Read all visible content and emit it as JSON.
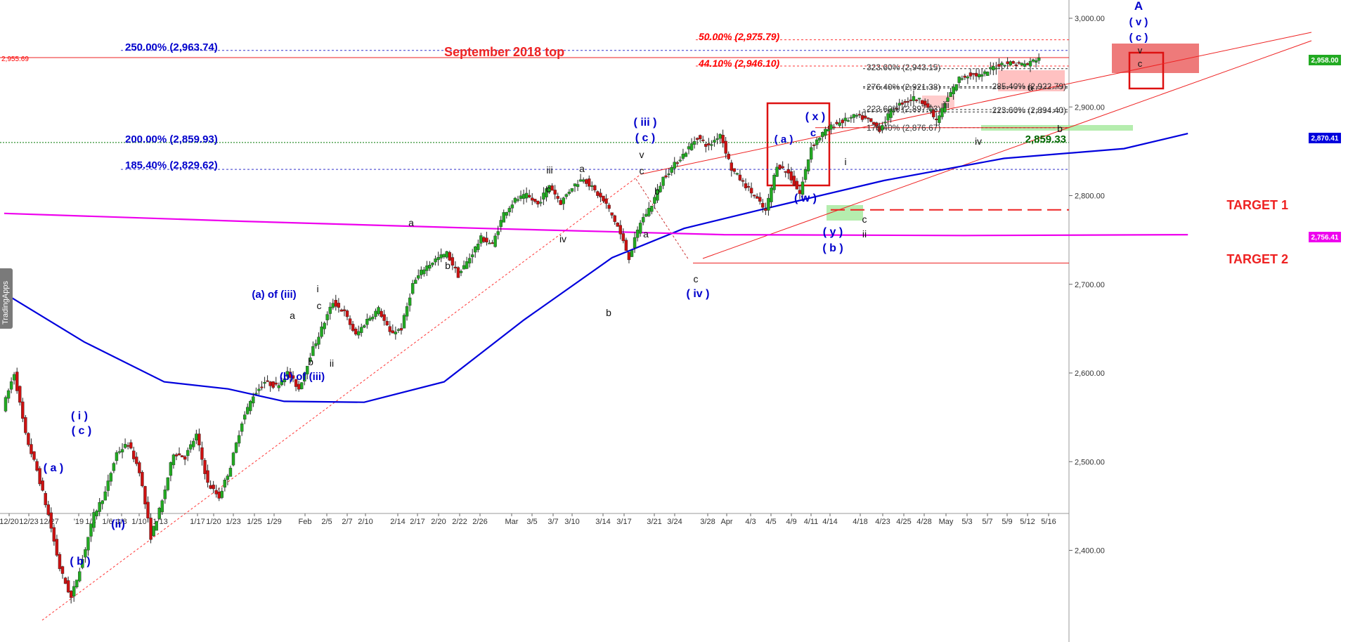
{
  "watermark": "TradingApps",
  "chart_data": {
    "type": "candlestick",
    "title": "",
    "ylim": [
      2320,
      3020
    ],
    "y_ticks": [
      "3,000.00",
      "2,900.00",
      "2,800.00",
      "2,700.00",
      "2,600.00",
      "2,500.00",
      "2,400.00"
    ],
    "x_ticks": [
      "12/20",
      "12/23",
      "12/27",
      "'19",
      "1/3",
      "1/6",
      "1/8",
      "1/10",
      "1/13",
      "1/17",
      "1/20",
      "1/23",
      "1/25",
      "1/29",
      "Feb",
      "2/5",
      "2/7",
      "2/10",
      "2/14",
      "2/17",
      "2/20",
      "2/22",
      "2/26",
      "Mar",
      "3/5",
      "3/7",
      "3/10",
      "3/14",
      "3/17",
      "3/21",
      "3/24",
      "3/28",
      "Apr",
      "4/3",
      "4/5",
      "4/9",
      "4/11",
      "4/14",
      "4/18",
      "4/23",
      "4/25",
      "4/28",
      "May",
      "5/3",
      "5/7",
      "5/9",
      "5/12",
      "5/16"
    ],
    "price_path": [
      [
        0,
        2560
      ],
      [
        1,
        2600
      ],
      [
        2,
        2530
      ],
      [
        3,
        2490
      ],
      [
        4,
        2440
      ],
      [
        5,
        2380
      ],
      [
        6,
        2346
      ],
      [
        7,
        2390
      ],
      [
        8,
        2440
      ],
      [
        9,
        2465
      ],
      [
        10,
        2510
      ],
      [
        11,
        2520
      ],
      [
        12,
        2490
      ],
      [
        13,
        2415
      ],
      [
        14,
        2455
      ],
      [
        15,
        2510
      ],
      [
        16,
        2505
      ],
      [
        17,
        2530
      ],
      [
        18,
        2475
      ],
      [
        19,
        2460
      ],
      [
        20,
        2495
      ],
      [
        21,
        2545
      ],
      [
        22,
        2575
      ],
      [
        23,
        2590
      ],
      [
        24,
        2585
      ],
      [
        25,
        2600
      ],
      [
        26,
        2582
      ],
      [
        27,
        2620
      ],
      [
        28,
        2650
      ],
      [
        29,
        2680
      ],
      [
        30,
        2668
      ],
      [
        31,
        2642
      ],
      [
        32,
        2660
      ],
      [
        33,
        2672
      ],
      [
        34,
        2645
      ],
      [
        35,
        2650
      ],
      [
        36,
        2700
      ],
      [
        37,
        2718
      ],
      [
        38,
        2728
      ],
      [
        39,
        2735
      ],
      [
        40,
        2710
      ],
      [
        41,
        2730
      ],
      [
        42,
        2752
      ],
      [
        43,
        2745
      ],
      [
        44,
        2780
      ],
      [
        45,
        2795
      ],
      [
        46,
        2800
      ],
      [
        47,
        2790
      ],
      [
        48,
        2812
      ],
      [
        49,
        2792
      ],
      [
        50,
        2810
      ],
      [
        51,
        2820
      ],
      [
        52,
        2805
      ],
      [
        53,
        2790
      ],
      [
        54,
        2765
      ],
      [
        55,
        2730
      ],
      [
        56,
        2770
      ],
      [
        57,
        2790
      ],
      [
        58,
        2820
      ],
      [
        59,
        2835
      ],
      [
        60,
        2850
      ],
      [
        61,
        2866
      ],
      [
        62,
        2855
      ],
      [
        63,
        2870
      ],
      [
        64,
        2830
      ],
      [
        65,
        2815
      ],
      [
        66,
        2800
      ],
      [
        67,
        2782
      ],
      [
        68,
        2835
      ],
      [
        69,
        2825
      ],
      [
        70,
        2802
      ],
      [
        71,
        2855
      ],
      [
        72,
        2870
      ],
      [
        73,
        2880
      ],
      [
        74,
        2885
      ],
      [
        75,
        2890
      ],
      [
        76,
        2885
      ],
      [
        77,
        2875
      ],
      [
        78,
        2895
      ],
      [
        79,
        2905
      ],
      [
        80,
        2910
      ],
      [
        81,
        2905
      ],
      [
        82,
        2884
      ],
      [
        83,
        2910
      ],
      [
        84,
        2932
      ],
      [
        85,
        2937
      ],
      [
        86,
        2935
      ],
      [
        87,
        2945
      ],
      [
        88,
        2950
      ],
      [
        89,
        2949
      ],
      [
        90,
        2948
      ],
      [
        91,
        2956
      ]
    ],
    "series": [
      {
        "name": "",
        "color": "#0000dd",
        "points": [
          [
            0,
            2690
          ],
          [
            10,
            2635
          ],
          [
            20,
            2590
          ],
          [
            28,
            2582
          ],
          [
            35,
            2568
          ],
          [
            45,
            2567
          ],
          [
            55,
            2590
          ],
          [
            65,
            2660
          ],
          [
            76,
            2730
          ],
          [
            85,
            2763
          ],
          [
            95,
            2785
          ],
          [
            110,
            2817
          ],
          [
            125,
            2842
          ],
          [
            140,
            2853
          ],
          [
            148,
            2870
          ]
        ]
      },
      {
        "name": "",
        "color": "#ee00ee",
        "points": [
          [
            0,
            2780
          ],
          [
            30,
            2771
          ],
          [
            60,
            2763
          ],
          [
            90,
            2756
          ],
          [
            120,
            2755
          ],
          [
            148,
            2756
          ]
        ]
      }
    ],
    "fib_levels": [
      {
        "label": "250.00% (2,963.74)",
        "value": 2963.74,
        "color": "#0000cc"
      },
      {
        "label": "200.00% (2,859.93)",
        "value": 2859.93,
        "color": "#0000cc"
      },
      {
        "label": "185.40% (2,829.62)",
        "value": 2829.62,
        "color": "#0000cc"
      },
      {
        "label": "50.00% (2,975.79)",
        "value": 2975.79,
        "color": "#ff0000"
      },
      {
        "label": "44.10% (2,946.10)",
        "value": 2946.1,
        "color": "#ff0000"
      },
      {
        "label": "323.60% (2,943.15)",
        "value": 2943.15,
        "color": "#333333"
      },
      {
        "label": "276.40% (2,921.38)",
        "value": 2921.38,
        "color": "#333333"
      },
      {
        "label": "223.60% (2,897.03)",
        "value": 2897.03,
        "color": "#333333"
      },
      {
        "label": "176.40% (2,876.67)",
        "value": 2876.67,
        "color": "#333333"
      },
      {
        "label": "285.40% (2,922.79)",
        "value": 2922.79,
        "color": "#333333"
      },
      {
        "label": "223.60% (2,894.40)",
        "value": 2894.4,
        "color": "#333333"
      }
    ],
    "horizontal_lines": [
      {
        "value": 2955.69,
        "label": "2,955.69",
        "color": "#ff0000"
      },
      {
        "value": 2859.33,
        "label": "2,859.33",
        "color": "#006600"
      }
    ],
    "price_badges": [
      {
        "value": 2958.0,
        "label": "2,958.00",
        "color": "#22aa22"
      },
      {
        "value": 2870.41,
        "label": "2,870.41",
        "color": "#0000dd"
      },
      {
        "value": 2756.41,
        "label": "2,756.41",
        "color": "#ee00ee"
      }
    ],
    "annotations": {
      "september_top": "September 2018 top",
      "target1": "TARGET 1",
      "target2": "TARGET 2"
    },
    "wave_labels": [
      {
        "text": "A",
        "color": "#0000cc",
        "size": 17
      },
      {
        "text": "( v )",
        "color": "#0000cc",
        "size": 15
      },
      {
        "text": "( c )",
        "color": "#0000cc",
        "size": 15
      },
      {
        "text": "v",
        "color": "#111111",
        "size": 13
      },
      {
        "text": "c",
        "color": "#111111",
        "size": 13
      },
      {
        "text": "a",
        "color": "#111111",
        "size": 14
      },
      {
        "text": "b",
        "color": "#111111",
        "size": 14
      },
      {
        "text": "iii",
        "color": "#111111",
        "size": 14
      },
      {
        "text": "iv",
        "color": "#111111",
        "size": 14
      },
      {
        "text": "( x )",
        "color": "#0000cc",
        "size": 16
      },
      {
        "text": "c",
        "color": "#0000cc",
        "size": 15
      },
      {
        "text": "( a )",
        "color": "#0000cc",
        "size": 15
      },
      {
        "text": "( w )",
        "color": "#0000cc",
        "size": 16
      },
      {
        "text": "i",
        "color": "#111111",
        "size": 14
      },
      {
        "text": "( y )",
        "color": "#0000cc",
        "size": 16
      },
      {
        "text": "( b )",
        "color": "#0000cc",
        "size": 16
      },
      {
        "text": "c",
        "color": "#111111",
        "size": 14
      },
      {
        "text": "ii",
        "color": "#111111",
        "size": 14
      },
      {
        "text": "( iii )",
        "color": "#0000cc",
        "size": 16
      },
      {
        "text": "( c )",
        "color": "#0000cc",
        "size": 16
      },
      {
        "text": "v",
        "color": "#111111",
        "size": 14
      },
      {
        "text": "c",
        "color": "#111111",
        "size": 14
      },
      {
        "text": "b",
        "color": "#111111",
        "size": 14
      },
      {
        "text": "a",
        "color": "#111111",
        "size": 14
      },
      {
        "text": "c",
        "color": "#111111",
        "size": 14
      },
      {
        "text": "( iv )",
        "color": "#0000cc",
        "size": 16
      },
      {
        "text": "iii",
        "color": "#111111",
        "size": 14
      },
      {
        "text": "a",
        "color": "#111111",
        "size": 14
      },
      {
        "text": "c",
        "color": "#111111",
        "size": 14
      },
      {
        "text": "iv",
        "color": "#111111",
        "size": 14
      },
      {
        "text": "b",
        "color": "#111111",
        "size": 14
      },
      {
        "text": "a",
        "color": "#111111",
        "size": 14
      },
      {
        "text": "b",
        "color": "#111111",
        "size": 14
      },
      {
        "text": "(a) of (iii)",
        "color": "#0000cc",
        "size": 15
      },
      {
        "text": "(b) of (iii)",
        "color": "#0000cc",
        "size": 15
      },
      {
        "text": "i",
        "color": "#111111",
        "size": 14
      },
      {
        "text": "c",
        "color": "#111111",
        "size": 14
      },
      {
        "text": "a",
        "color": "#111111",
        "size": 14
      },
      {
        "text": "b",
        "color": "#111111",
        "size": 14
      },
      {
        "text": "ii",
        "color": "#111111",
        "size": 14
      },
      {
        "text": "( i )",
        "color": "#0000cc",
        "size": 16
      },
      {
        "text": "( c )",
        "color": "#0000cc",
        "size": 16
      },
      {
        "text": "( a )",
        "color": "#0000cc",
        "size": 16
      },
      {
        "text": "(ii)",
        "color": "#0000cc",
        "size": 16
      },
      {
        "text": "( b )",
        "color": "#0000cc",
        "size": 16
      }
    ]
  }
}
